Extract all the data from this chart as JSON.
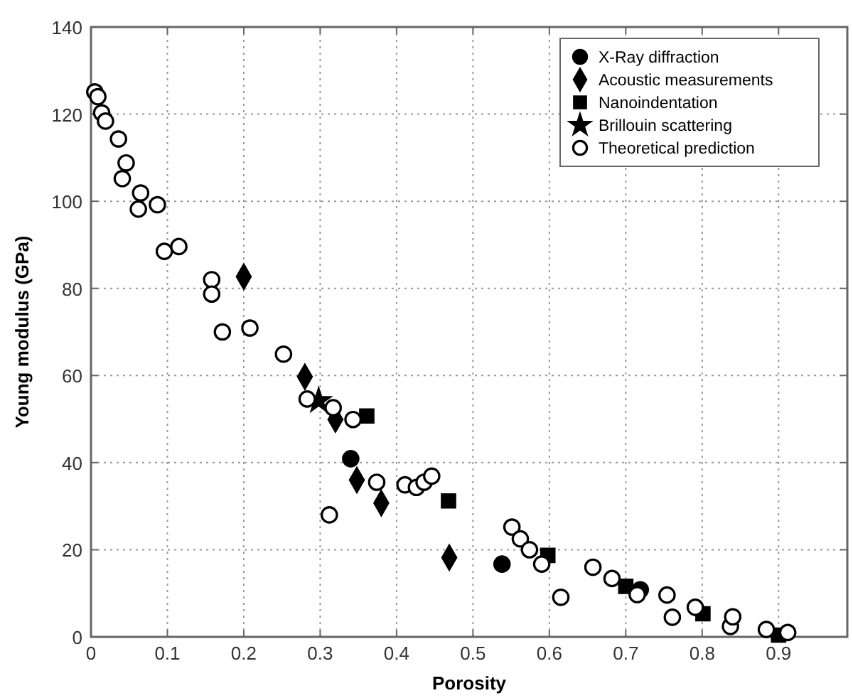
{
  "chart_data": {
    "type": "scatter",
    "xlabel": "Porosity",
    "ylabel": "Young modulus (GPa)",
    "xlim": [
      0,
      0.99
    ],
    "ylim": [
      0,
      140
    ],
    "xticks": [
      0,
      0.1,
      0.2,
      0.3,
      0.4,
      0.5,
      0.6,
      0.7,
      0.8,
      0.9
    ],
    "yticks": [
      0,
      20,
      40,
      60,
      80,
      100,
      120,
      140
    ],
    "grid": true,
    "legend": "top right",
    "series": [
      {
        "name": "X-Ray diffraction",
        "color": "#000000",
        "marker": "circle",
        "x": [
          0.34,
          0.538,
          0.719
        ],
        "values": [
          40.9,
          16.7,
          10.8
        ]
      },
      {
        "name": "Acoustic measurements",
        "color": "#000000",
        "marker": "diamond",
        "x": [
          0.2,
          0.28,
          0.32,
          0.348,
          0.38,
          0.469
        ],
        "values": [
          82.7,
          59.7,
          49.9,
          36.0,
          30.7,
          18.2
        ]
      },
      {
        "name": "Nanoindentation",
        "color": "#000000",
        "marker": "square",
        "x": [
          0.361,
          0.468,
          0.598,
          0.7,
          0.801,
          0.9
        ],
        "values": [
          50.7,
          31.2,
          18.7,
          11.6,
          5.3,
          0.4
        ]
      },
      {
        "name": "Brillouin scattering",
        "color": "#000000",
        "marker": "star",
        "x": [
          0.298
        ],
        "values": [
          54.2
        ]
      },
      {
        "name": "Theoretical prediction",
        "color": "#ffffff",
        "marker": "circle",
        "x": [
          0.005,
          0.009,
          0.014,
          0.019,
          0.036,
          0.041,
          0.046,
          0.062,
          0.065,
          0.087,
          0.096,
          0.115,
          0.158,
          0.158,
          0.172,
          0.208,
          0.252,
          0.283,
          0.312,
          0.317,
          0.343,
          0.374,
          0.411,
          0.426,
          0.436,
          0.446,
          0.551,
          0.562,
          0.574,
          0.59,
          0.615,
          0.657,
          0.682,
          0.715,
          0.754,
          0.761,
          0.791,
          0.837,
          0.84,
          0.884,
          0.912
        ],
        "values": [
          125.1,
          124,
          120.3,
          118.4,
          114.3,
          105.2,
          108.8,
          98.2,
          101.9,
          99.2,
          88.5,
          89.6,
          82,
          78.7,
          70,
          70.9,
          64.9,
          54.6,
          28.0,
          52.6,
          49.9,
          35.5,
          34.9,
          34.3,
          35.5,
          36.9,
          25.2,
          22.5,
          20.0,
          16.7,
          9.1,
          16.0,
          13.4,
          9.7,
          9.6,
          4.5,
          6.8,
          2.4,
          4.6,
          1.7,
          1.0
        ]
      }
    ]
  }
}
